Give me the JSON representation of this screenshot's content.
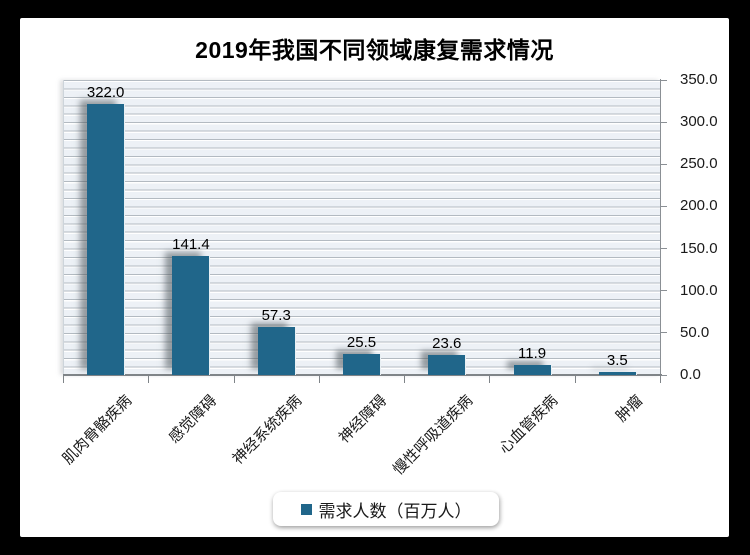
{
  "frame": {
    "background": "#000000",
    "card_background": "#ffffff"
  },
  "title": "2019年我国不同领域康复需求情况",
  "legend": {
    "label": "需求人数（百万人）",
    "marker_color": "#20668a"
  },
  "axes": {
    "y_tick_labels": [
      "350.0",
      "300.0",
      "250.0",
      "200.0",
      "150.0",
      "100.0",
      "50.0",
      "0.0"
    ],
    "axis_color": "#8a8f94"
  },
  "chart_data": {
    "type": "bar",
    "title": "2019年我国不同领域康复需求情况",
    "categories": [
      "肌肉骨骼疾病",
      "感觉障碍",
      "神经系统疾病",
      "神经障碍",
      "慢性呼吸道疾病",
      "心血管疾病",
      "肿瘤"
    ],
    "values": [
      322.0,
      141.4,
      57.3,
      25.5,
      23.6,
      11.9,
      3.5
    ],
    "value_labels": [
      "322.0",
      "141.4",
      "57.3",
      "25.5",
      "23.6",
      "11.9",
      "3.5"
    ],
    "series_name": "需求人数（百万人）",
    "xlabel": "",
    "ylabel": "",
    "ylim": [
      0,
      350
    ],
    "y_tick_step": 50,
    "minor_grid_step": 10,
    "grid": "horizontal-minor",
    "bar_color": "#20668a",
    "plot_background": "#edf1f6",
    "legend_position": "bottom",
    "y_axis_side": "right",
    "category_label_rotation_deg": 45
  }
}
